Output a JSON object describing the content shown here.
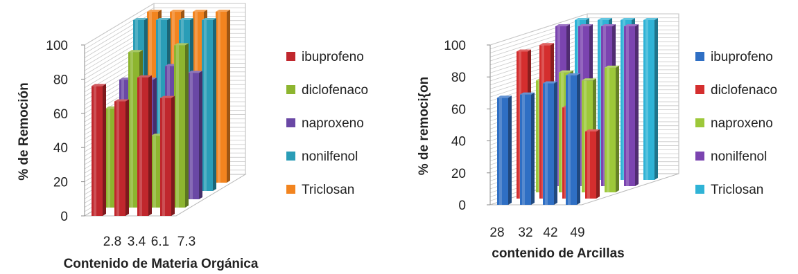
{
  "chart_data": [
    {
      "type": "bar",
      "ylabel": "% de Remoción",
      "xlabel": "Contenido de Materia Orgánica",
      "categories": [
        "2.8",
        "3.4",
        "6.1",
        "7.3"
      ],
      "ylim": [
        0,
        100
      ],
      "yticks": [
        "0",
        "20",
        "40",
        "60",
        "80",
        "100"
      ],
      "grid": true,
      "legend_position": "right",
      "series": [
        {
          "name": "ibuprofeno",
          "color": "#C0272D",
          "values": [
            76,
            67,
            81,
            69
          ]
        },
        {
          "name": "diclofenaco",
          "color": "#8DB52F",
          "values": [
            58,
            91,
            42,
            95
          ]
        },
        {
          "name": "naproxeno",
          "color": "#6A48A5",
          "values": [
            70,
            70,
            78,
            74
          ]
        },
        {
          "name": "nonilfenol",
          "color": "#2A9DB7",
          "values": [
            100,
            100,
            100,
            100
          ]
        },
        {
          "name": "Triclosan",
          "color": "#F2841F",
          "values": [
            100,
            100,
            100,
            100
          ]
        }
      ]
    },
    {
      "type": "bar",
      "ylabel": "% de remoci{on",
      "xlabel": "contenido de Arcillas",
      "categories": [
        "28",
        "32",
        "42",
        "49"
      ],
      "ylim": [
        0,
        100
      ],
      "yticks": [
        "0",
        "20",
        "40",
        "60",
        "80",
        "100"
      ],
      "grid": true,
      "legend_position": "right",
      "series": [
        {
          "name": "ibuprofeno",
          "color": "#2F6FC4",
          "values": [
            67,
            69,
            76,
            81
          ]
        },
        {
          "name": "diclofenaco",
          "color": "#D42E2E",
          "values": [
            92,
            96,
            57,
            42
          ]
        },
        {
          "name": "naproxeno",
          "color": "#9DC83A",
          "values": [
            70,
            75,
            70,
            78
          ]
        },
        {
          "name": "nonilfenol",
          "color": "#7B44B0",
          "values": [
            100,
            100,
            100,
            100
          ]
        },
        {
          "name": "Triclosan",
          "color": "#2FB3D6",
          "values": [
            100,
            100,
            100,
            100
          ]
        }
      ]
    }
  ]
}
